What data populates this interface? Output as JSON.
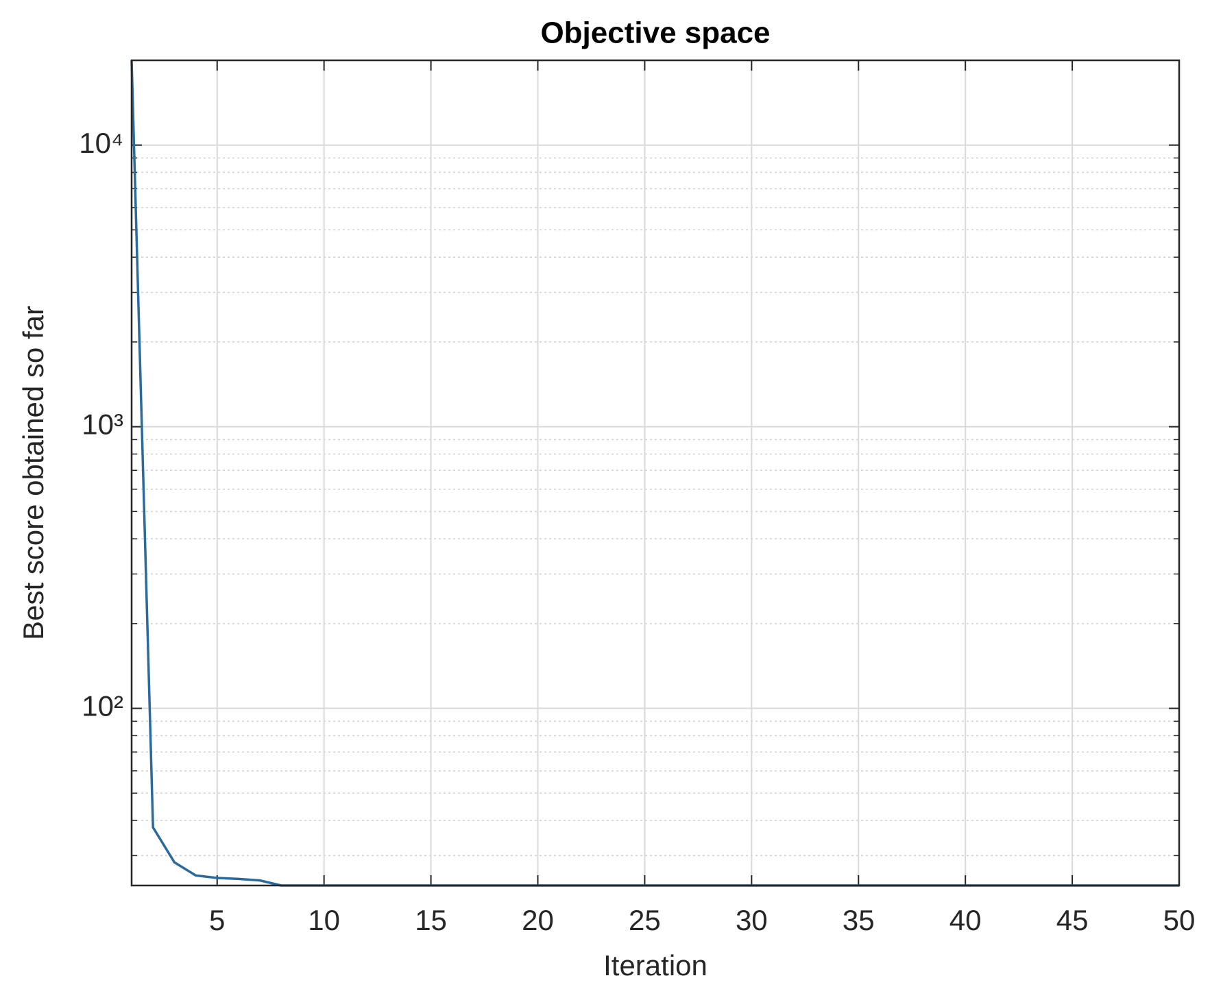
{
  "chart_data": {
    "type": "line",
    "title": "Objective space",
    "xlabel": "Iteration",
    "ylabel": "Best score obtained so far",
    "x": [
      1,
      2,
      3,
      4,
      5,
      6,
      7,
      8,
      9,
      10,
      11,
      12,
      13,
      14,
      15,
      16,
      17,
      18,
      19,
      20,
      21,
      22,
      23,
      24,
      25,
      26,
      27,
      28,
      29,
      30,
      31,
      32,
      33,
      34,
      35,
      36,
      37,
      38,
      39,
      40,
      41,
      42,
      43,
      44,
      45,
      46,
      47,
      48,
      49,
      50
    ],
    "series": [
      {
        "name": "Best score",
        "color": "#2a6a9c",
        "values": [
          20000,
          37.8,
          28.4,
          25.5,
          25.0,
          24.8,
          24.5,
          23.5,
          23.5,
          23.5,
          23.5,
          23.5,
          23.5,
          23.5,
          23.5,
          23.5,
          23.5,
          23.5,
          23.5,
          23.5,
          23.5,
          23.5,
          23.5,
          23.5,
          23.5,
          23.5,
          23.5,
          23.5,
          23.5,
          23.5,
          23.5,
          23.5,
          23.5,
          23.5,
          23.5,
          23.5,
          23.5,
          23.5,
          23.5,
          23.5,
          23.5,
          23.5,
          23.5,
          23.5,
          23.5,
          23.5,
          23.5,
          23.5,
          23.5,
          23.5
        ]
      }
    ],
    "xlim": [
      1,
      50
    ],
    "xticks": [
      5,
      10,
      15,
      20,
      25,
      30,
      35,
      40,
      45,
      50
    ],
    "ylim": [
      23.5,
      20000
    ],
    "yticks": [
      {
        "value": 100,
        "label": "10²"
      },
      {
        "value": 1000,
        "label": "10³"
      },
      {
        "value": 10000,
        "label": "10⁴"
      }
    ],
    "ylog": true,
    "grid": true,
    "minor_grid": true
  }
}
